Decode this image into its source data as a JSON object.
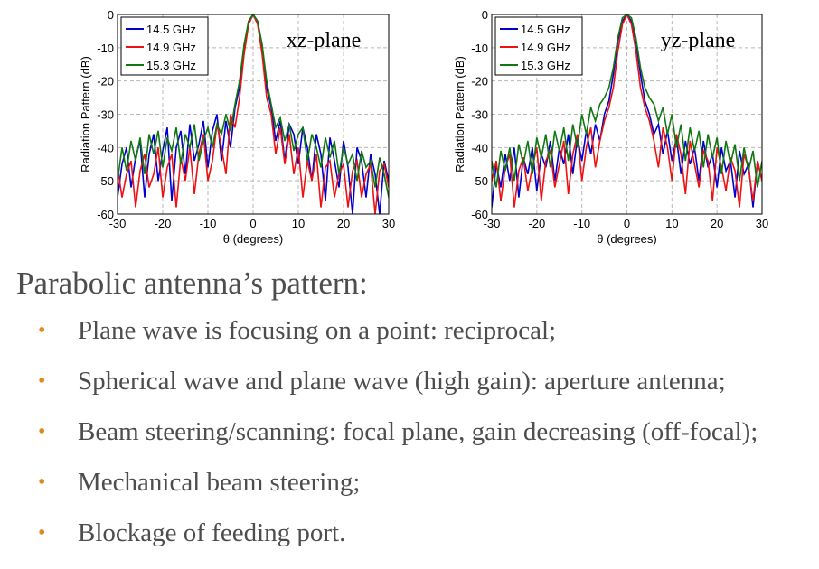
{
  "chart_data": [
    {
      "type": "line",
      "title": "",
      "annotation": "xz-plane",
      "xlabel": "θ (degrees)",
      "ylabel": "Radiation Pattern (dB)",
      "xlim": [
        -30,
        30
      ],
      "ylim": [
        -60,
        0
      ],
      "xticks": [
        "-30",
        "-20",
        "-10",
        "0",
        "10",
        "20",
        "30"
      ],
      "yticks": [
        "0",
        "-10",
        "-20",
        "-30",
        "-40",
        "-50",
        "-60"
      ],
      "grid": true,
      "legend_position": "top-left",
      "x": [
        -30,
        -29,
        -28,
        -27,
        -26,
        -25,
        -24,
        -23,
        -22,
        -21,
        -20,
        -19,
        -18,
        -17,
        -16,
        -15,
        -14,
        -13,
        -12,
        -11,
        -10,
        -9,
        -8,
        -7,
        -6,
        -5,
        -4,
        -3,
        -2,
        -1,
        0,
        1,
        2,
        3,
        4,
        5,
        6,
        7,
        8,
        9,
        10,
        11,
        12,
        13,
        14,
        15,
        16,
        17,
        18,
        19,
        20,
        21,
        22,
        23,
        24,
        25,
        26,
        27,
        28,
        29,
        30
      ],
      "series": [
        {
          "name": "14.5 GHz",
          "color": "#0000cc",
          "values": [
            -55,
            -45,
            -40,
            -52,
            -43,
            -38,
            -55,
            -42,
            -36,
            -50,
            -41,
            -34,
            -56,
            -40,
            -35,
            -48,
            -33,
            -44,
            -39,
            -32,
            -46,
            -35,
            -30,
            -44,
            -32,
            -40,
            -28,
            -22,
            -10,
            -2,
            0,
            -2,
            -10,
            -22,
            -28,
            -38,
            -32,
            -44,
            -33,
            -36,
            -45,
            -34,
            -40,
            -50,
            -36,
            -42,
            -56,
            -37,
            -44,
            -52,
            -38,
            -46,
            -60,
            -40,
            -44,
            -55,
            -42,
            -48,
            -60,
            -44,
            -50
          ]
        },
        {
          "name": "14.9 GHz",
          "color": "#ee1111",
          "values": [
            -46,
            -55,
            -48,
            -44,
            -58,
            -47,
            -42,
            -52,
            -48,
            -40,
            -55,
            -46,
            -42,
            -58,
            -43,
            -50,
            -40,
            -54,
            -42,
            -36,
            -50,
            -44,
            -33,
            -40,
            -48,
            -30,
            -34,
            -25,
            -12,
            -3,
            0,
            -3,
            -12,
            -25,
            -30,
            -42,
            -34,
            -45,
            -36,
            -48,
            -40,
            -55,
            -44,
            -50,
            -42,
            -58,
            -46,
            -44,
            -55,
            -48,
            -45,
            -58,
            -47,
            -44,
            -55,
            -48,
            -45,
            -60,
            -47,
            -45,
            -52
          ]
        },
        {
          "name": "15.3 GHz",
          "color": "#117711",
          "values": [
            -50,
            -40,
            -47,
            -38,
            -44,
            -37,
            -48,
            -36,
            -42,
            -35,
            -46,
            -37,
            -41,
            -34,
            -45,
            -36,
            -40,
            -33,
            -44,
            -38,
            -34,
            -40,
            -33,
            -36,
            -30,
            -35,
            -27,
            -20,
            -9,
            -2,
            0,
            -2,
            -9,
            -20,
            -27,
            -34,
            -31,
            -38,
            -33,
            -41,
            -36,
            -34,
            -44,
            -36,
            -40,
            -46,
            -37,
            -43,
            -38,
            -48,
            -40,
            -45,
            -42,
            -50,
            -41,
            -46,
            -44,
            -52,
            -43,
            -48,
            -55
          ]
        }
      ]
    },
    {
      "type": "line",
      "title": "",
      "annotation": "yz-plane",
      "xlabel": "θ (degrees)",
      "ylabel": "Radiation Pattern (dB)",
      "xlim": [
        -30,
        30
      ],
      "ylim": [
        -60,
        0
      ],
      "xticks": [
        "-30",
        "-20",
        "-10",
        "0",
        "10",
        "20",
        "30"
      ],
      "yticks": [
        "0",
        "-10",
        "-20",
        "-30",
        "-40",
        "-50",
        "-60"
      ],
      "grid": true,
      "legend_position": "top-left",
      "x": [
        -30,
        -29,
        -28,
        -27,
        -26,
        -25,
        -24,
        -23,
        -22,
        -21,
        -20,
        -19,
        -18,
        -17,
        -16,
        -15,
        -14,
        -13,
        -12,
        -11,
        -10,
        -9,
        -8,
        -7,
        -6,
        -5,
        -4,
        -3,
        -2,
        -1,
        0,
        1,
        2,
        3,
        4,
        5,
        6,
        7,
        8,
        9,
        10,
        11,
        12,
        13,
        14,
        15,
        16,
        17,
        18,
        19,
        20,
        21,
        22,
        23,
        24,
        25,
        26,
        27,
        28,
        29,
        30
      ],
      "series": [
        {
          "name": "14.5 GHz",
          "color": "#0000cc",
          "values": [
            -58,
            -45,
            -52,
            -42,
            -50,
            -40,
            -55,
            -43,
            -48,
            -40,
            -53,
            -42,
            -46,
            -38,
            -50,
            -40,
            -45,
            -36,
            -48,
            -37,
            -44,
            -35,
            -42,
            -33,
            -38,
            -30,
            -26,
            -18,
            -8,
            -2,
            0,
            -2,
            -8,
            -18,
            -26,
            -30,
            -36,
            -33,
            -42,
            -35,
            -44,
            -37,
            -48,
            -38,
            -45,
            -40,
            -50,
            -38,
            -46,
            -42,
            -52,
            -40,
            -47,
            -44,
            -55,
            -41,
            -48,
            -45,
            -58,
            -44,
            -50
          ]
        },
        {
          "name": "14.9 GHz",
          "color": "#ee1111",
          "values": [
            -50,
            -44,
            -56,
            -46,
            -42,
            -58,
            -47,
            -43,
            -53,
            -46,
            -40,
            -56,
            -44,
            -41,
            -52,
            -45,
            -38,
            -54,
            -42,
            -36,
            -50,
            -40,
            -34,
            -46,
            -38,
            -32,
            -28,
            -22,
            -11,
            -3,
            0,
            -3,
            -11,
            -22,
            -28,
            -32,
            -38,
            -46,
            -34,
            -40,
            -50,
            -36,
            -42,
            -54,
            -38,
            -45,
            -52,
            -41,
            -44,
            -56,
            -40,
            -46,
            -53,
            -43,
            -47,
            -58,
            -42,
            -46,
            -56,
            -44,
            -50
          ]
        },
        {
          "name": "15.3 GHz",
          "color": "#117711",
          "values": [
            -44,
            -52,
            -41,
            -47,
            -40,
            -50,
            -39,
            -45,
            -38,
            -48,
            -37,
            -43,
            -36,
            -46,
            -35,
            -41,
            -34,
            -44,
            -33,
            -40,
            -30,
            -36,
            -28,
            -32,
            -27,
            -25,
            -22,
            -16,
            -7,
            -1,
            0,
            -1,
            -7,
            -16,
            -22,
            -25,
            -27,
            -32,
            -28,
            -36,
            -30,
            -40,
            -33,
            -44,
            -34,
            -41,
            -35,
            -46,
            -36,
            -43,
            -37,
            -48,
            -38,
            -45,
            -39,
            -50,
            -40,
            -47,
            -41,
            -52,
            -44
          ]
        }
      ]
    }
  ],
  "slide": {
    "title": "Parabolic antenna’s pattern:",
    "bullets": [
      "Plane wave is focusing on a point: reciprocal;",
      "Spherical wave and plane wave (high gain): aperture antenna;",
      "Beam steering/scanning: focal plane, gain decreasing (off-focal);",
      "Mechanical beam steering;",
      "Blockage of feeding port."
    ]
  }
}
